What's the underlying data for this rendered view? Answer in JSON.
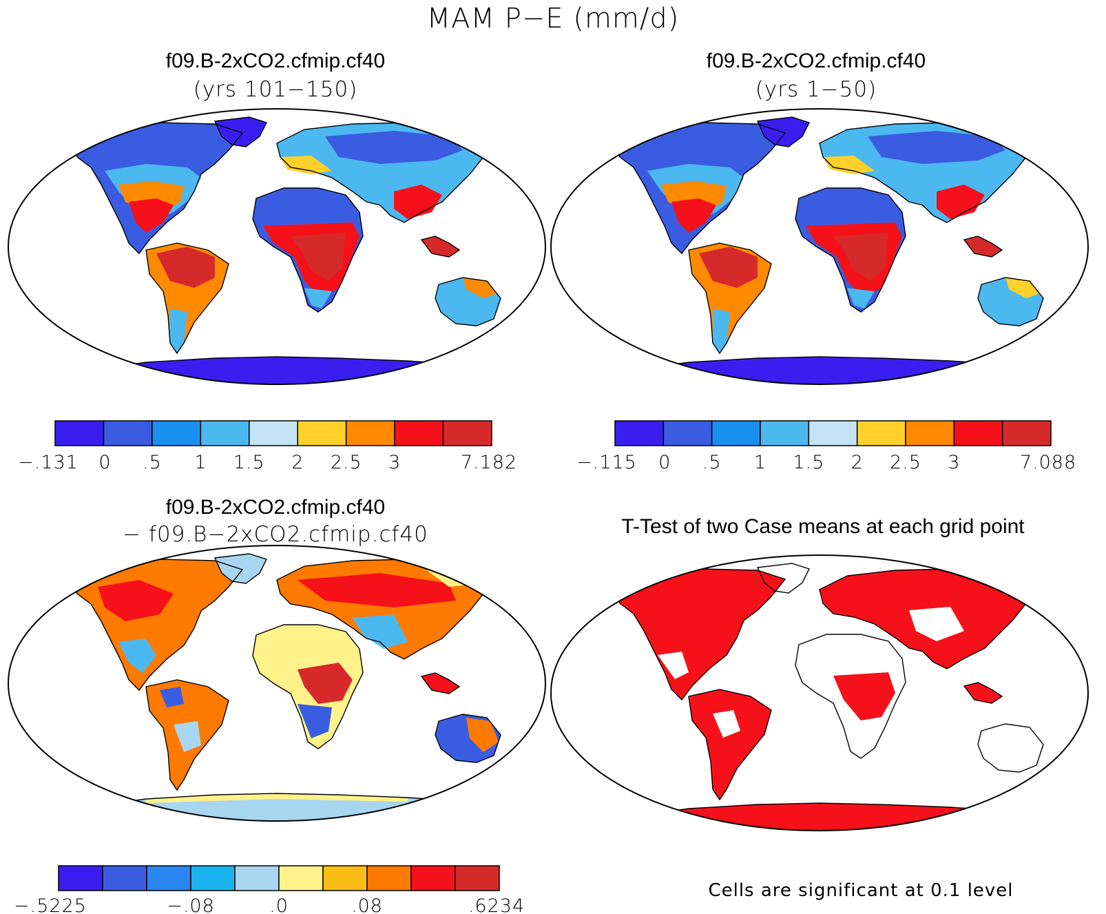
{
  "main_title": "MAM P−E (mm/d)",
  "panels": {
    "top_left": {
      "title": "f09.B-2xCO2.cfmip.cf40",
      "subtitle": "(yrs 101−150)"
    },
    "top_right": {
      "title": "f09.B-2xCO2.cfmip.cf40",
      "subtitle": "(yrs 1−50)"
    },
    "bottom_left": {
      "title": "f09.B-2xCO2.cfmip.cf40",
      "subtitle": "− f09.B−2xCO2.cfmip.cf40"
    },
    "bottom_right": {
      "title": "T-Test of two Case means at each grid point",
      "note": "Cells are significant at 0.1 level"
    }
  },
  "colorbars": {
    "top_left": {
      "colors": [
        "#3a1ef0",
        "#3a5ce0",
        "#1a8ff0",
        "#4cb8f0",
        "#c4e4f6",
        "#ffd12a",
        "#ff8a00",
        "#f5111a",
        "#d62a2a"
      ],
      "labels": [
        "−.131",
        "0",
        ".5",
        "1",
        "1.5",
        "2",
        "2.5",
        "3",
        "7.182"
      ]
    },
    "top_right": {
      "colors": [
        "#3a1ef0",
        "#3a5ce0",
        "#1a8ff0",
        "#4cb8f0",
        "#c4e4f6",
        "#ffd12a",
        "#ff8a00",
        "#f5111a",
        "#d62a2a"
      ],
      "labels": [
        "−.115",
        "0",
        ".5",
        "1",
        "1.5",
        "2",
        "2.5",
        "3",
        "7.088"
      ]
    },
    "bottom_left": {
      "colors": [
        "#3a1ef0",
        "#3a5ce0",
        "#2a86f0",
        "#19b4f0",
        "#a8d6f0",
        "#fff28a",
        "#fbbd16",
        "#ff7a00",
        "#f5111a",
        "#d62a2a"
      ],
      "labels": [
        "−.5225",
        "−.08",
        ".0",
        ".08",
        ".6234"
      ]
    }
  },
  "legend_colors": {
    "significant": "#f5111a",
    "land_outline": "#000000",
    "ocean": "#ffffff"
  }
}
